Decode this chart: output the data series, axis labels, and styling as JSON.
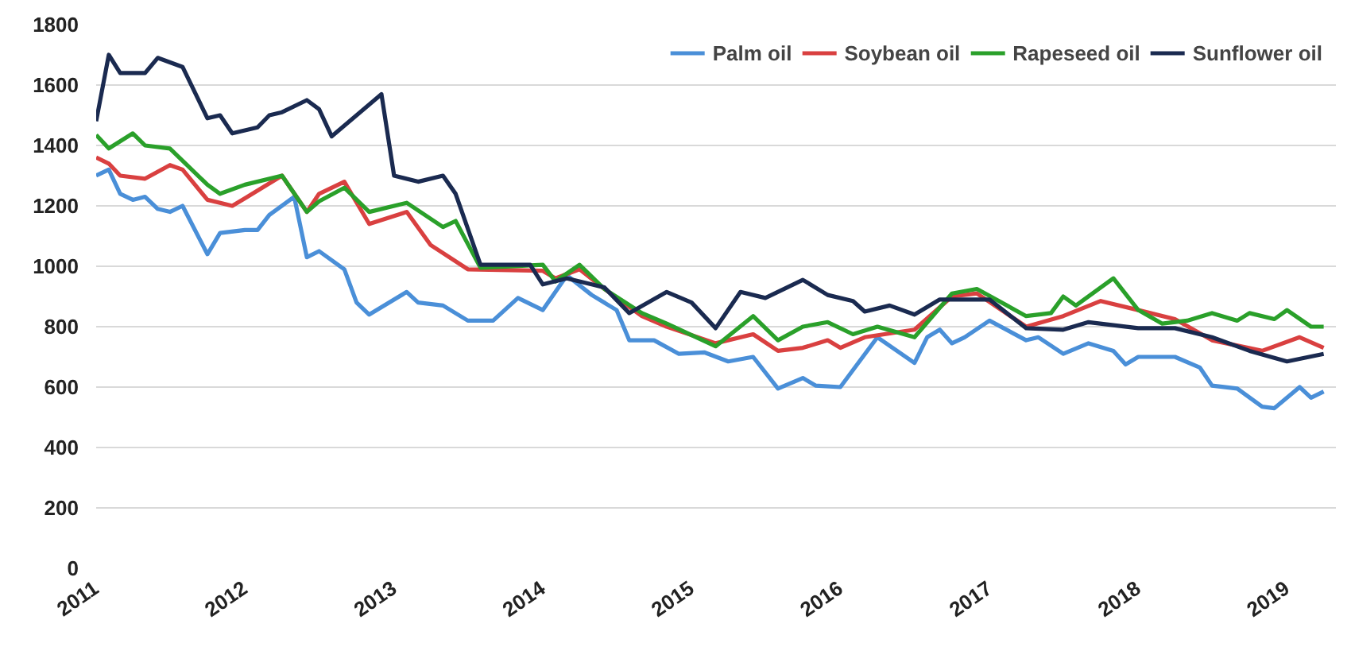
{
  "chart_data": {
    "type": "line",
    "xlim": [
      "2011-01",
      "2019-05"
    ],
    "xticks": [
      "2011",
      "2012",
      "2013",
      "2014",
      "2015",
      "2016",
      "2017",
      "2018",
      "2019"
    ],
    "ylim": [
      0,
      1800
    ],
    "yticks": [
      0,
      200,
      400,
      600,
      800,
      1000,
      1200,
      1400,
      1600,
      1800
    ],
    "grid": "y",
    "legend": "top right",
    "marker": "none",
    "line_style": "solid",
    "series": [
      {
        "name": "Palm oil",
        "color": "#4a8fd8",
        "x": [
          "2011-01",
          "2011-02",
          "2011-03",
          "2011-04",
          "2011-05",
          "2011-06",
          "2011-07",
          "2011-08",
          "2011-10",
          "2011-11",
          "2012-01",
          "2012-02",
          "2012-03",
          "2012-05",
          "2012-06",
          "2012-07",
          "2012-09",
          "2012-10",
          "2012-11",
          "2013-02",
          "2013-03",
          "2013-05",
          "2013-07",
          "2013-09",
          "2013-11",
          "2014-01",
          "2014-03",
          "2014-05",
          "2014-07",
          "2014-08",
          "2014-10",
          "2014-12",
          "2015-02",
          "2015-04",
          "2015-06",
          "2015-08",
          "2015-10",
          "2015-11",
          "2016-01",
          "2016-04",
          "2016-07",
          "2016-08",
          "2016-09",
          "2016-10",
          "2016-11",
          "2017-01",
          "2017-04",
          "2017-05",
          "2017-07",
          "2017-09",
          "2017-11",
          "2017-12",
          "2018-01",
          "2018-04",
          "2018-06",
          "2018-07",
          "2018-09",
          "2018-11",
          "2018-12",
          "2019-02",
          "2019-03",
          "2019-04"
        ],
        "values": [
          1300,
          1320,
          1240,
          1220,
          1230,
          1190,
          1180,
          1200,
          1040,
          1110,
          1120,
          1120,
          1170,
          1230,
          1030,
          1050,
          990,
          880,
          840,
          915,
          880,
          870,
          820,
          820,
          895,
          855,
          970,
          905,
          855,
          755,
          755,
          710,
          715,
          685,
          700,
          595,
          630,
          605,
          600,
          765,
          680,
          765,
          790,
          745,
          765,
          820,
          755,
          765,
          710,
          745,
          720,
          675,
          700,
          700,
          665,
          605,
          595,
          535,
          530,
          600,
          565,
          585
        ]
      },
      {
        "name": "Soybean oil",
        "color": "#d94040",
        "x": [
          "2011-01",
          "2011-02",
          "2011-03",
          "2011-05",
          "2011-07",
          "2011-08",
          "2011-10",
          "2011-12",
          "2012-01",
          "2012-04",
          "2012-06",
          "2012-07",
          "2012-09",
          "2012-11",
          "2013-02",
          "2013-04",
          "2013-07",
          "2014-01",
          "2014-02",
          "2014-04",
          "2014-06",
          "2014-09",
          "2014-11",
          "2015-03",
          "2015-06",
          "2015-08",
          "2015-10",
          "2015-12",
          "2016-01",
          "2016-03",
          "2016-07",
          "2016-10",
          "2016-12",
          "2017-04",
          "2017-07",
          "2017-10",
          "2018-01",
          "2018-04",
          "2018-07",
          "2018-11",
          "2019-02",
          "2019-04"
        ],
        "values": [
          1360,
          1340,
          1300,
          1290,
          1335,
          1320,
          1220,
          1200,
          1225,
          1300,
          1180,
          1240,
          1280,
          1140,
          1180,
          1070,
          990,
          985,
          960,
          990,
          925,
          835,
          800,
          745,
          775,
          720,
          730,
          755,
          730,
          765,
          790,
          900,
          910,
          800,
          835,
          885,
          855,
          825,
          755,
          720,
          765,
          730
        ]
      },
      {
        "name": "Rapeseed oil",
        "color": "#2aa02a",
        "x": [
          "2011-01",
          "2011-02",
          "2011-04",
          "2011-05",
          "2011-07",
          "2011-10",
          "2011-11",
          "2012-01",
          "2012-04",
          "2012-06",
          "2012-07",
          "2012-09",
          "2012-11",
          "2013-02",
          "2013-05",
          "2013-06",
          "2013-08",
          "2014-01",
          "2014-02",
          "2014-04",
          "2014-06",
          "2014-09",
          "2014-11",
          "2015-03",
          "2015-06",
          "2015-08",
          "2015-10",
          "2015-12",
          "2016-02",
          "2016-04",
          "2016-07",
          "2016-10",
          "2016-12",
          "2017-04",
          "2017-06",
          "2017-07",
          "2017-08",
          "2017-11",
          "2018-01",
          "2018-03",
          "2018-05",
          "2018-07",
          "2018-09",
          "2018-10",
          "2018-12",
          "2019-01",
          "2019-03",
          "2019-04"
        ],
        "values": [
          1435,
          1390,
          1440,
          1400,
          1390,
          1270,
          1240,
          1270,
          1300,
          1180,
          1215,
          1260,
          1180,
          1210,
          1130,
          1150,
          995,
          1005,
          950,
          1005,
          925,
          845,
          810,
          735,
          835,
          755,
          800,
          815,
          775,
          800,
          765,
          910,
          925,
          835,
          845,
          900,
          870,
          960,
          855,
          810,
          820,
          845,
          820,
          845,
          825,
          855,
          800,
          800
        ]
      },
      {
        "name": "Sunflower oil",
        "color": "#1a2a50",
        "x": [
          "2011-01",
          "2011-02",
          "2011-03",
          "2011-05",
          "2011-06",
          "2011-08",
          "2011-10",
          "2011-11",
          "2011-12",
          "2012-02",
          "2012-03",
          "2012-04",
          "2012-06",
          "2012-07",
          "2012-08",
          "2012-10",
          "2012-12",
          "2013-01",
          "2013-03",
          "2013-05",
          "2013-06",
          "2013-08",
          "2013-12",
          "2014-01",
          "2014-03",
          "2014-05",
          "2014-06",
          "2014-08",
          "2014-11",
          "2015-01",
          "2015-03",
          "2015-05",
          "2015-07",
          "2015-10",
          "2015-12",
          "2016-02",
          "2016-03",
          "2016-05",
          "2016-07",
          "2016-09",
          "2017-01",
          "2017-04",
          "2017-07",
          "2017-09",
          "2018-01",
          "2018-04",
          "2018-07",
          "2018-10",
          "2019-01",
          "2019-04"
        ],
        "values": [
          1480,
          1700,
          1640,
          1640,
          1690,
          1660,
          1490,
          1500,
          1440,
          1460,
          1500,
          1510,
          1550,
          1520,
          1430,
          1500,
          1570,
          1300,
          1280,
          1300,
          1240,
          1005,
          1005,
          940,
          960,
          940,
          930,
          845,
          915,
          880,
          795,
          915,
          895,
          955,
          905,
          885,
          850,
          870,
          840,
          890,
          890,
          795,
          790,
          815,
          795,
          795,
          765,
          720,
          685,
          710
        ]
      }
    ]
  }
}
